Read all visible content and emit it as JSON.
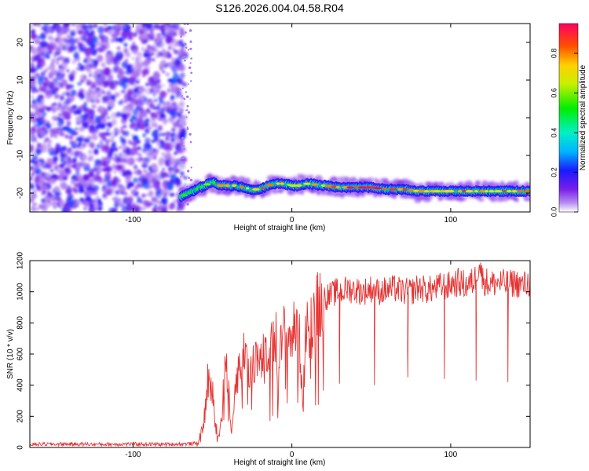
{
  "title": "S126.2026.004.04.58.R04",
  "chart_data": [
    {
      "type": "heatmap",
      "name": "spectrogram",
      "xlabel": "Height of straight line (km)",
      "ylabel": "Frequency (Hz)",
      "xlim": [
        -165,
        150
      ],
      "ylim": [
        -25,
        25
      ],
      "xticks": [
        -100,
        0,
        100
      ],
      "yticks": [
        -20,
        -10,
        0,
        10,
        20
      ],
      "noise_region_x": [
        -165,
        -70
      ],
      "ridge": {
        "x": [
          -70,
          -65,
          -60,
          -55,
          -50,
          -45,
          -40,
          -35,
          -30,
          -25,
          -20,
          -15,
          -10,
          -5,
          0,
          5,
          10,
          20,
          30,
          40,
          50,
          60,
          70,
          80,
          90,
          100,
          110,
          120,
          130,
          140,
          150
        ],
        "freq": [
          -21,
          -20,
          -19,
          -18,
          -17,
          -18,
          -18,
          -18,
          -18.5,
          -19,
          -19,
          -18,
          -17.5,
          -17.5,
          -18,
          -18,
          -17.5,
          -18,
          -18.5,
          -18.5,
          -18.5,
          -19,
          -19,
          -19.5,
          -19.5,
          -19.5,
          -19.5,
          -19.5,
          -19.5,
          -19.5,
          -19.5
        ],
        "amplitude": [
          0.55,
          0.6,
          0.65,
          0.7,
          0.75,
          0.8,
          0.85,
          0.85,
          0.85,
          0.85,
          0.9,
          0.9,
          0.9,
          0.85,
          0.8,
          0.85,
          0.85,
          0.85,
          0.9,
          0.95,
          0.95,
          0.95,
          0.95,
          0.9,
          0.9,
          0.9,
          0.95,
          0.95,
          0.9,
          0.9,
          0.9
        ]
      },
      "colorbar": {
        "label": "Normalized spectral amplitude",
        "range": [
          0,
          0.95
        ],
        "ticks": [
          "0.0",
          "0.2",
          "0.4",
          "0.6",
          "0.8"
        ]
      }
    },
    {
      "type": "line",
      "name": "snr",
      "xlabel": "Height of straight line (km)",
      "ylabel": "SNR (10 * v/v)",
      "xlim": [
        -165,
        150
      ],
      "ylim": [
        0,
        1200
      ],
      "xticks": [
        -100,
        0,
        100
      ],
      "yticks": [
        0,
        200,
        400,
        600,
        800,
        1000,
        1200
      ],
      "color": "#e53333",
      "series": [
        {
          "name": "SNR",
          "x": [
            -165,
            -140,
            -120,
            -100,
            -80,
            -70,
            -60,
            -57,
            -55,
            -53,
            -50,
            -48,
            -46,
            -44,
            -42,
            -40,
            -38,
            -35,
            -33,
            -30,
            -27,
            -25,
            -22,
            -20,
            -17,
            -15,
            -12,
            -10,
            -8,
            -5,
            -3,
            0,
            3,
            5,
            7,
            9,
            10,
            12,
            15,
            18,
            20,
            25,
            28,
            30,
            32,
            35,
            40,
            45,
            50,
            52,
            54,
            60,
            65,
            70,
            73,
            75,
            80,
            85,
            90,
            95,
            96,
            98,
            100,
            105,
            110,
            115,
            116,
            118,
            120,
            125,
            130,
            135,
            136,
            138,
            140,
            145,
            150
          ],
          "snr": [
            20,
            22,
            20,
            22,
            20,
            22,
            25,
            80,
            200,
            430,
            350,
            150,
            60,
            250,
            550,
            380,
            120,
            450,
            520,
            580,
            480,
            550,
            600,
            500,
            640,
            580,
            650,
            700,
            580,
            730,
            700,
            720,
            780,
            660,
            270,
            800,
            830,
            840,
            880,
            950,
            960,
            980,
            1000,
            410,
            1000,
            1020,
            1010,
            1000,
            1020,
            400,
            1000,
            1010,
            1020,
            1000,
            450,
            1000,
            1030,
            1010,
            1020,
            1040,
            440,
            1030,
            1050,
            1060,
            1040,
            1070,
            430,
            1200,
            1080,
            1050,
            1060,
            1050,
            420,
            1050,
            1060,
            1040,
            1060
          ]
        }
      ]
    }
  ]
}
